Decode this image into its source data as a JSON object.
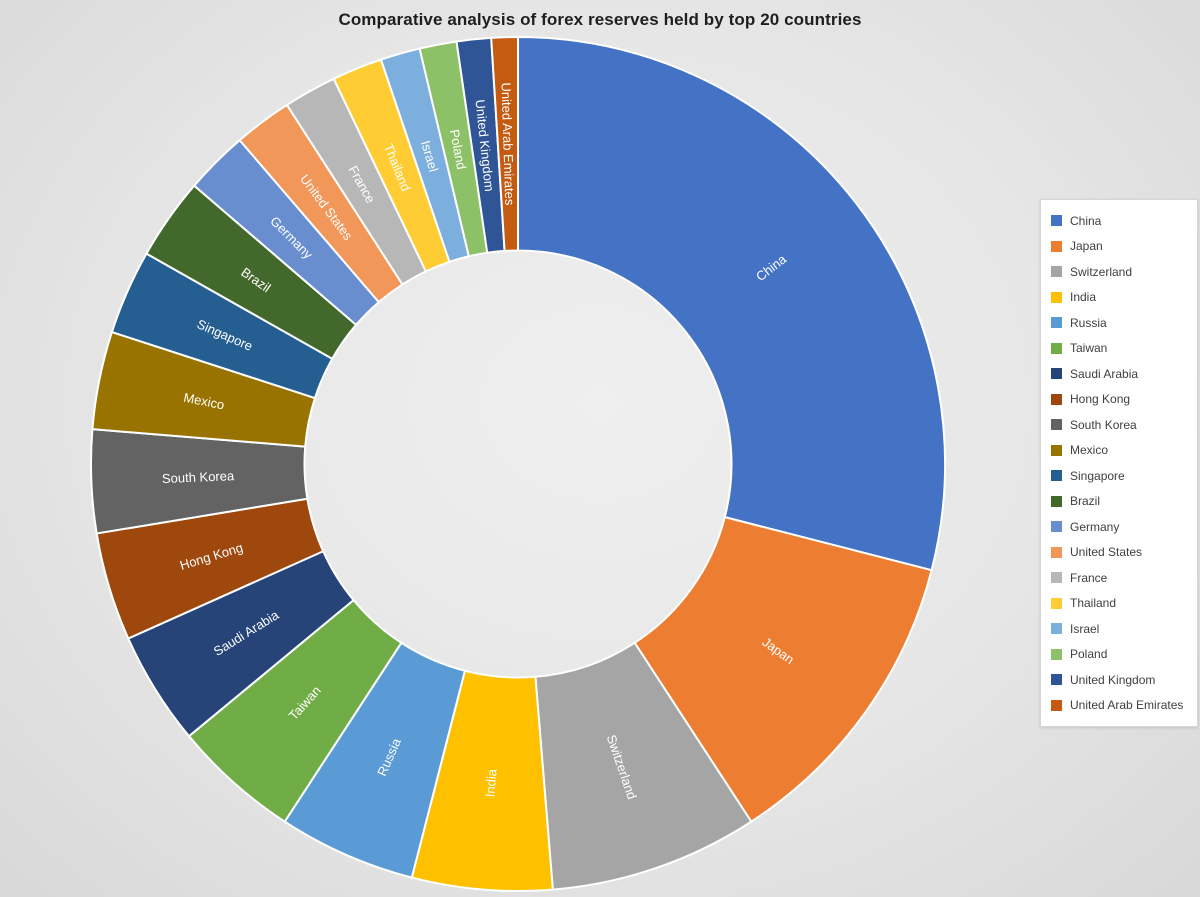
{
  "chart_data": {
    "type": "pie",
    "variant": "doughnut",
    "title": "Comparative analysis of forex reserves held by top 20 countries",
    "categories": [
      "China",
      "Japan",
      "Switzerland",
      "India",
      "Russia",
      "Taiwan",
      "Saudi Arabia",
      "Hong Kong",
      "South Korea",
      "Mexico",
      "Singapore",
      "Brazil",
      "Germany",
      "United States",
      "France",
      "Thailand",
      "Israel",
      "Poland",
      "United Kingdom",
      "United Arab Emirates"
    ],
    "values": [
      29.0,
      11.8,
      7.9,
      5.3,
      5.2,
      4.8,
      4.3,
      4.1,
      3.9,
      3.7,
      3.2,
      3.1,
      2.4,
      2.2,
      2.0,
      1.9,
      1.5,
      1.4,
      1.3,
      1.0
    ],
    "values_unit": "percent of total, estimated from arc angles (no numeric labels are shown in the image)",
    "colors": [
      "#4472C4",
      "#ED7D31",
      "#A5A5A5",
      "#FFC000",
      "#5B9BD5",
      "#70AD47",
      "#264478",
      "#9E480E",
      "#636363",
      "#997300",
      "#255E91",
      "#43682B",
      "#698ED0",
      "#F1975A",
      "#B7B7B7",
      "#FFCD33",
      "#7CAFDD",
      "#8CC168",
      "#2F5597",
      "#C55A11"
    ],
    "start_angle_deg": 0,
    "direction": "clockwise",
    "hole_ratio": 0.5,
    "slice_labels": "category names rendered in white, rotated radially on each slice",
    "legend_position": "right",
    "background_color": "#e6e6e6",
    "separator_color": "#ffffff"
  }
}
